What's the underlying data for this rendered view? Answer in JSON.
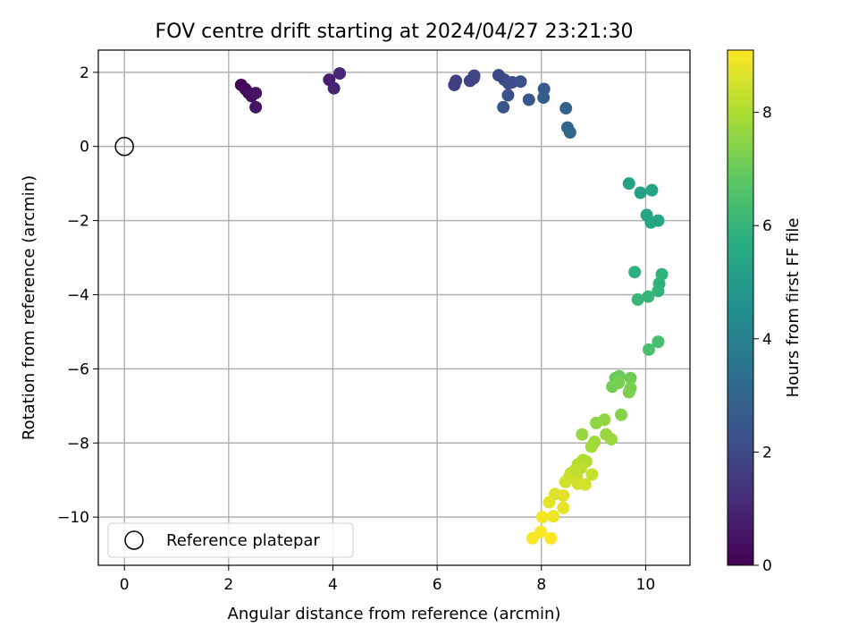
{
  "chart_data": {
    "type": "scatter",
    "title": "FOV centre drift starting at 2024/04/27 23:21:30",
    "xlabel": "Angular distance from reference (arcmin)",
    "ylabel": "Rotation from reference (arcmin)",
    "xlim": [
      -0.5,
      10.85
    ],
    "ylim": [
      -11.3,
      2.6
    ],
    "xticks": [
      0,
      2,
      4,
      6,
      8,
      10
    ],
    "yticks": [
      2,
      0,
      -2,
      -4,
      -6,
      -8,
      -10
    ],
    "xtick_labels": [
      "0",
      "2",
      "4",
      "6",
      "8",
      "10"
    ],
    "ytick_labels": [
      "2",
      "0",
      "−2",
      "−4",
      "−6",
      "−8",
      "−10"
    ],
    "grid": true,
    "colormap": "viridis",
    "colorbar": {
      "label": "Hours from first FF file",
      "range": [
        0,
        9.1
      ],
      "ticks": [
        0,
        2,
        4,
        6,
        8
      ],
      "tick_labels": [
        "0",
        "2",
        "4",
        "6",
        "8"
      ]
    },
    "legend": {
      "position": "lower-left",
      "entries": [
        "Reference platepar"
      ]
    },
    "reference_point": {
      "x": 0,
      "y": 0
    },
    "points": [
      {
        "x": 2.24,
        "y": 1.66,
        "t": 0.1
      },
      {
        "x": 2.32,
        "y": 1.55,
        "t": 0.2
      },
      {
        "x": 2.38,
        "y": 1.45,
        "t": 0.3
      },
      {
        "x": 2.44,
        "y": 1.36,
        "t": 0.4
      },
      {
        "x": 2.52,
        "y": 1.44,
        "t": 0.5
      },
      {
        "x": 2.52,
        "y": 1.06,
        "t": 0.55
      },
      {
        "x": 3.93,
        "y": 1.8,
        "t": 0.8
      },
      {
        "x": 4.02,
        "y": 1.57,
        "t": 0.9
      },
      {
        "x": 4.13,
        "y": 1.97,
        "t": 1.0
      },
      {
        "x": 6.33,
        "y": 1.66,
        "t": 1.7
      },
      {
        "x": 6.36,
        "y": 1.77,
        "t": 1.75
      },
      {
        "x": 6.63,
        "y": 1.77,
        "t": 1.8
      },
      {
        "x": 6.7,
        "y": 1.84,
        "t": 1.85
      },
      {
        "x": 6.71,
        "y": 1.91,
        "t": 1.9
      },
      {
        "x": 7.18,
        "y": 1.92,
        "t": 2.0
      },
      {
        "x": 7.29,
        "y": 1.8,
        "t": 2.05
      },
      {
        "x": 7.37,
        "y": 1.7,
        "t": 2.1
      },
      {
        "x": 7.44,
        "y": 1.73,
        "t": 2.15
      },
      {
        "x": 7.6,
        "y": 1.75,
        "t": 2.2
      },
      {
        "x": 7.36,
        "y": 1.38,
        "t": 2.3
      },
      {
        "x": 7.27,
        "y": 1.06,
        "t": 2.4
      },
      {
        "x": 7.76,
        "y": 1.26,
        "t": 2.5
      },
      {
        "x": 8.05,
        "y": 1.55,
        "t": 2.6
      },
      {
        "x": 8.04,
        "y": 1.32,
        "t": 2.7
      },
      {
        "x": 8.47,
        "y": 1.03,
        "t": 2.9
      },
      {
        "x": 8.5,
        "y": 0.51,
        "t": 3.0
      },
      {
        "x": 8.55,
        "y": 0.38,
        "t": 3.1
      },
      {
        "x": 9.68,
        "y": -1.0,
        "t": 5.2
      },
      {
        "x": 9.9,
        "y": -1.25,
        "t": 5.25
      },
      {
        "x": 10.12,
        "y": -1.18,
        "t": 5.3
      },
      {
        "x": 10.02,
        "y": -1.85,
        "t": 5.35
      },
      {
        "x": 10.1,
        "y": -2.05,
        "t": 5.4
      },
      {
        "x": 10.24,
        "y": -2.0,
        "t": 5.45
      },
      {
        "x": 9.79,
        "y": -3.39,
        "t": 5.8
      },
      {
        "x": 10.26,
        "y": -3.7,
        "t": 5.85
      },
      {
        "x": 10.31,
        "y": -3.45,
        "t": 5.9
      },
      {
        "x": 10.24,
        "y": -3.9,
        "t": 5.95
      },
      {
        "x": 10.05,
        "y": -4.05,
        "t": 6.0
      },
      {
        "x": 9.85,
        "y": -4.13,
        "t": 6.05
      },
      {
        "x": 10.24,
        "y": -5.27,
        "t": 6.4
      },
      {
        "x": 10.06,
        "y": -5.48,
        "t": 6.5
      },
      {
        "x": 9.42,
        "y": -6.25,
        "t": 7.0
      },
      {
        "x": 9.49,
        "y": -6.2,
        "t": 7.05
      },
      {
        "x": 9.71,
        "y": -6.25,
        "t": 7.1
      },
      {
        "x": 9.36,
        "y": -6.48,
        "t": 7.15
      },
      {
        "x": 9.48,
        "y": -6.38,
        "t": 7.2
      },
      {
        "x": 9.71,
        "y": -6.52,
        "t": 7.25
      },
      {
        "x": 9.68,
        "y": -6.63,
        "t": 7.3
      },
      {
        "x": 9.53,
        "y": -7.24,
        "t": 7.45
      },
      {
        "x": 9.05,
        "y": -7.46,
        "t": 7.55
      },
      {
        "x": 9.21,
        "y": -7.37,
        "t": 7.6
      },
      {
        "x": 8.78,
        "y": -7.77,
        "t": 7.65
      },
      {
        "x": 9.24,
        "y": -7.77,
        "t": 7.7
      },
      {
        "x": 9.34,
        "y": -7.9,
        "t": 7.75
      },
      {
        "x": 9.02,
        "y": -7.97,
        "t": 7.8
      },
      {
        "x": 8.96,
        "y": -8.1,
        "t": 7.85
      },
      {
        "x": 8.8,
        "y": -8.46,
        "t": 8.0
      },
      {
        "x": 8.86,
        "y": -8.5,
        "t": 8.05
      },
      {
        "x": 8.7,
        "y": -8.58,
        "t": 8.1
      },
      {
        "x": 8.76,
        "y": -8.67,
        "t": 8.15
      },
      {
        "x": 8.63,
        "y": -8.75,
        "t": 8.2
      },
      {
        "x": 8.56,
        "y": -8.82,
        "t": 8.25
      },
      {
        "x": 8.68,
        "y": -8.9,
        "t": 8.3
      },
      {
        "x": 8.97,
        "y": -8.85,
        "t": 8.35
      },
      {
        "x": 8.52,
        "y": -8.95,
        "t": 8.4
      },
      {
        "x": 8.46,
        "y": -9.05,
        "t": 8.45
      },
      {
        "x": 8.7,
        "y": -9.1,
        "t": 8.5
      },
      {
        "x": 8.84,
        "y": -9.12,
        "t": 8.55
      },
      {
        "x": 8.26,
        "y": -9.38,
        "t": 8.65
      },
      {
        "x": 8.42,
        "y": -9.42,
        "t": 8.7
      },
      {
        "x": 8.15,
        "y": -9.6,
        "t": 8.75
      },
      {
        "x": 8.42,
        "y": -9.75,
        "t": 8.8
      },
      {
        "x": 8.23,
        "y": -9.98,
        "t": 8.9
      },
      {
        "x": 8.02,
        "y": -10.0,
        "t": 8.95
      },
      {
        "x": 7.99,
        "y": -10.4,
        "t": 9.0
      },
      {
        "x": 7.83,
        "y": -10.57,
        "t": 9.05
      },
      {
        "x": 8.18,
        "y": -10.57,
        "t": 9.1
      }
    ]
  }
}
